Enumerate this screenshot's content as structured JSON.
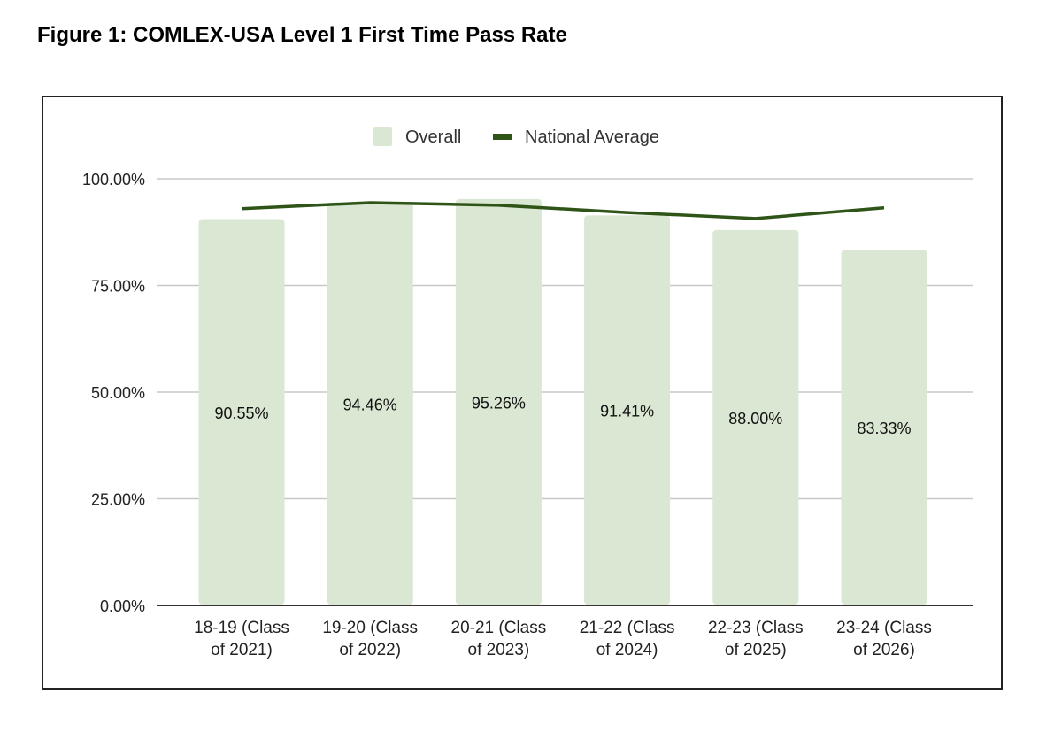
{
  "figure_title": "Figure 1: COMLEX-USA Level 1 First Time Pass Rate",
  "chart_data": {
    "type": "bar",
    "title": "Figure 1: COMLEX-USA Level 1 First Time Pass Rate",
    "xlabel": "",
    "ylabel": "",
    "ylim": [
      0,
      100
    ],
    "yticks": [
      0,
      25,
      50,
      75,
      100
    ],
    "ytick_labels": [
      "0.00%",
      "25.00%",
      "50.00%",
      "75.00%",
      "100.00%"
    ],
    "grid": true,
    "legend_position": "top-center",
    "categories": [
      [
        "18-19 (Class",
        "of 2021)"
      ],
      [
        "19-20 (Class",
        "of 2022)"
      ],
      [
        "20-21 (Class",
        "of 2023)"
      ],
      [
        "21-22 (Class",
        "of 2024)"
      ],
      [
        "22-23 (Class",
        "of 2025)"
      ],
      [
        "23-24 (Class",
        "of 2026)"
      ]
    ],
    "series": [
      {
        "name": "Overall",
        "type": "bar",
        "color": "#d9e7d3",
        "values": [
          90.55,
          94.46,
          95.26,
          91.41,
          88.0,
          83.33
        ],
        "data_labels": [
          "90.55%",
          "94.46%",
          "95.26%",
          "91.41%",
          "88.00%",
          "83.33%"
        ]
      },
      {
        "name": "National Average",
        "type": "line",
        "color": "#2f5418",
        "values": [
          93.0,
          94.4,
          93.8,
          92.1,
          90.7,
          93.2
        ]
      }
    ]
  }
}
